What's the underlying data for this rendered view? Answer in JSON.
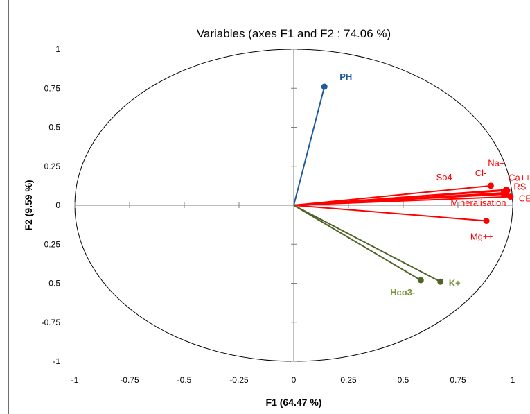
{
  "chart_data": {
    "type": "scatter",
    "subtype": "correlation-circle",
    "title": "Variables (axes F1 and F2 : 74.06 %)",
    "xlabel": "F1 (64.47 %)",
    "ylabel": "F2 (9.59 %)",
    "xlim": [
      -1,
      1
    ],
    "ylim": [
      -1,
      1
    ],
    "x_ticks": [
      "-1",
      "-0.75",
      "-0.5",
      "-0.25",
      "0",
      "0.25",
      "0.5",
      "0.75",
      "1"
    ],
    "y_ticks": [
      "1",
      "0.75",
      "0.5",
      "0.25",
      "0",
      "-0.25",
      "-0.5",
      "-0.75",
      "-1"
    ],
    "grid": false,
    "unit_circle": true,
    "colors": {
      "blue": "#1f5a9c",
      "red": "#ff0000",
      "green": "#4f6228",
      "green_label": "#77933c"
    },
    "variables": [
      {
        "label": "PH",
        "x": 0.14,
        "y": 0.76,
        "color": "#1f5a9c",
        "label_color": "#1f5a9c",
        "bold": true
      },
      {
        "label": "Na+",
        "x": 0.97,
        "y": 0.1,
        "color": "#ff0000",
        "label_color": "#ff0000",
        "bold": false
      },
      {
        "label": "Cl-",
        "x": 0.9,
        "y": 0.125,
        "color": "#ff0000",
        "label_color": "#ff0000",
        "bold": false
      },
      {
        "label": "Ca++",
        "x": 0.975,
        "y": 0.095,
        "color": "#ff0000",
        "label_color": "#ff0000",
        "bold": false
      },
      {
        "label": "So4--",
        "x": 0.96,
        "y": 0.08,
        "color": "#ff0000",
        "label_color": "#ff0000",
        "bold": false
      },
      {
        "label": "RS",
        "x": 0.96,
        "y": 0.07,
        "color": "#ff0000",
        "label_color": "#ff0000",
        "bold": false
      },
      {
        "label": "CE",
        "x": 0.99,
        "y": 0.055,
        "color": "#ff0000",
        "label_color": "#ff0000",
        "bold": false
      },
      {
        "label": "Mineralisation",
        "x": 0.97,
        "y": 0.075,
        "color": "#ff0000",
        "label_color": "#ff0000",
        "bold": false
      },
      {
        "label": "Mg++",
        "x": 0.88,
        "y": -0.1,
        "color": "#ff0000",
        "label_color": "#ff0000",
        "bold": false
      },
      {
        "label": "Hco3-",
        "x": 0.58,
        "y": -0.48,
        "color": "#4f6228",
        "label_color": "#77933c",
        "bold": true
      },
      {
        "label": "K+",
        "x": 0.67,
        "y": -0.49,
        "color": "#4f6228",
        "label_color": "#77933c",
        "bold": true
      }
    ]
  }
}
